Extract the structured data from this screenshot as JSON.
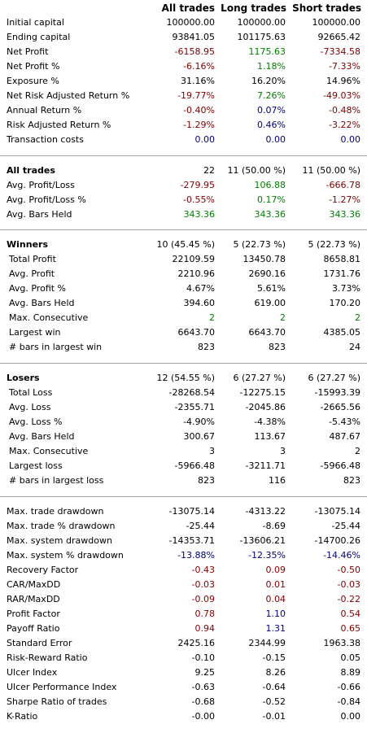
{
  "headers": [
    "All trades",
    "Long trades",
    "Short trades"
  ],
  "sections": [
    {
      "rows": [
        {
          "label": "Initial capital",
          "v": [
            "100000.00",
            "100000.00",
            "100000.00"
          ],
          "c": [
            "",
            "",
            ""
          ]
        },
        {
          "label": "Ending capital",
          "v": [
            "93841.05",
            "101175.63",
            "92665.42"
          ],
          "c": [
            "",
            "",
            ""
          ]
        },
        {
          "label": "Net Profit",
          "v": [
            "-6158.95",
            "1175.63",
            "-7334.58"
          ],
          "c": [
            "red",
            "green",
            "red"
          ]
        },
        {
          "label": "Net Profit %",
          "v": [
            "-6.16%",
            "1.18%",
            "-7.33%"
          ],
          "c": [
            "red",
            "green",
            "red"
          ]
        },
        {
          "label": "Exposure %",
          "v": [
            "31.16%",
            "16.20%",
            "14.96%"
          ],
          "c": [
            "",
            "",
            ""
          ]
        },
        {
          "label": "Net Risk Adjusted Return %",
          "v": [
            "-19.77%",
            "7.26%",
            "-49.03%"
          ],
          "c": [
            "red",
            "green",
            "red"
          ]
        },
        {
          "label": "Annual Return %",
          "v": [
            "-0.40%",
            "0.07%",
            "-0.48%"
          ],
          "c": [
            "red",
            "blue",
            "red"
          ]
        },
        {
          "label": "Risk Adjusted Return %",
          "v": [
            "-1.29%",
            "0.46%",
            "-3.22%"
          ],
          "c": [
            "red",
            "blue",
            "red"
          ]
        },
        {
          "label": "Transaction costs",
          "v": [
            "0.00",
            "0.00",
            "0.00"
          ],
          "c": [
            "blue",
            "blue",
            "blue"
          ]
        }
      ]
    },
    {
      "rows": [
        {
          "label": "All trades",
          "bold": true,
          "v": [
            "22",
            "11 (50.00 %)",
            "11 (50.00 %)"
          ],
          "c": [
            "",
            "",
            ""
          ]
        },
        {
          "label": "Avg. Profit/Loss",
          "v": [
            "-279.95",
            "106.88",
            "-666.78"
          ],
          "c": [
            "red",
            "green",
            "red"
          ]
        },
        {
          "label": "Avg. Profit/Loss %",
          "v": [
            "-0.55%",
            "0.17%",
            "-1.27%"
          ],
          "c": [
            "red",
            "green",
            "red"
          ]
        },
        {
          "label": "Avg. Bars Held",
          "v": [
            "343.36",
            "343.36",
            "343.36"
          ],
          "c": [
            "green",
            "green",
            "green"
          ]
        }
      ]
    },
    {
      "rows": [
        {
          "label": "Winners",
          "bold": true,
          "v": [
            "10 (45.45 %)",
            "5 (22.73 %)",
            "5 (22.73 %)"
          ],
          "c": [
            "",
            "",
            ""
          ]
        },
        {
          "label": "Total Profit",
          "indent": true,
          "v": [
            "22109.59",
            "13450.78",
            "8658.81"
          ],
          "c": [
            "",
            "",
            ""
          ]
        },
        {
          "label": "Avg. Profit",
          "indent": true,
          "v": [
            "2210.96",
            "2690.16",
            "1731.76"
          ],
          "c": [
            "",
            "",
            ""
          ]
        },
        {
          "label": "Avg. Profit %",
          "indent": true,
          "v": [
            "4.67%",
            "5.61%",
            "3.73%"
          ],
          "c": [
            "",
            "",
            ""
          ]
        },
        {
          "label": "Avg. Bars Held",
          "indent": true,
          "v": [
            "394.60",
            "619.00",
            "170.20"
          ],
          "c": [
            "",
            "",
            ""
          ]
        },
        {
          "label": "Max. Consecutive",
          "indent": true,
          "v": [
            "2",
            "2",
            "2"
          ],
          "c": [
            "green",
            "green",
            "green"
          ]
        },
        {
          "label": "Largest win",
          "indent": true,
          "v": [
            "6643.70",
            "6643.70",
            "4385.05"
          ],
          "c": [
            "",
            "",
            ""
          ]
        },
        {
          "label": "# bars in largest win",
          "indent": true,
          "v": [
            "823",
            "823",
            "24"
          ],
          "c": [
            "",
            "",
            ""
          ]
        }
      ]
    },
    {
      "rows": [
        {
          "label": "Losers",
          "bold": true,
          "v": [
            "12 (54.55 %)",
            "6 (27.27 %)",
            "6 (27.27 %)"
          ],
          "c": [
            "",
            "",
            ""
          ]
        },
        {
          "label": "Total Loss",
          "indent": true,
          "v": [
            "-28268.54",
            "-12275.15",
            "-15993.39"
          ],
          "c": [
            "",
            "",
            ""
          ]
        },
        {
          "label": "Avg. Loss",
          "indent": true,
          "v": [
            "-2355.71",
            "-2045.86",
            "-2665.56"
          ],
          "c": [
            "",
            "",
            ""
          ]
        },
        {
          "label": "Avg. Loss %",
          "indent": true,
          "v": [
            "-4.90%",
            "-4.38%",
            "-5.43%"
          ],
          "c": [
            "",
            "",
            ""
          ]
        },
        {
          "label": "Avg. Bars Held",
          "indent": true,
          "v": [
            "300.67",
            "113.67",
            "487.67"
          ],
          "c": [
            "",
            "",
            ""
          ]
        },
        {
          "label": "Max. Consecutive",
          "indent": true,
          "v": [
            "3",
            "3",
            "2"
          ],
          "c": [
            "",
            "",
            ""
          ]
        },
        {
          "label": "Largest loss",
          "indent": true,
          "v": [
            "-5966.48",
            "-3211.71",
            "-5966.48"
          ],
          "c": [
            "",
            "",
            ""
          ]
        },
        {
          "label": "# bars in largest loss",
          "indent": true,
          "v": [
            "823",
            "116",
            "823"
          ],
          "c": [
            "",
            "",
            ""
          ]
        }
      ]
    },
    {
      "rows": [
        {
          "label": "Max. trade drawdown",
          "v": [
            "-13075.14",
            "-4313.22",
            "-13075.14"
          ],
          "c": [
            "",
            "",
            ""
          ]
        },
        {
          "label": "Max. trade % drawdown",
          "v": [
            "-25.44",
            "-8.69",
            "-25.44"
          ],
          "c": [
            "",
            "",
            ""
          ]
        },
        {
          "label": "Max. system drawdown",
          "v": [
            "-14353.71",
            "-13606.21",
            "-14700.26"
          ],
          "c": [
            "",
            "",
            ""
          ]
        },
        {
          "label": "Max. system % drawdown",
          "v": [
            "-13.88%",
            "-12.35%",
            "-14.46%"
          ],
          "c": [
            "blue",
            "blue",
            "blue"
          ]
        },
        {
          "label": "Recovery Factor",
          "v": [
            "-0.43",
            "0.09",
            "-0.50"
          ],
          "c": [
            "red",
            "red",
            "red"
          ]
        },
        {
          "label": "CAR/MaxDD",
          "v": [
            "-0.03",
            "0.01",
            "-0.03"
          ],
          "c": [
            "red",
            "red",
            "red"
          ]
        },
        {
          "label": "RAR/MaxDD",
          "v": [
            "-0.09",
            "0.04",
            "-0.22"
          ],
          "c": [
            "red",
            "red",
            "red"
          ]
        },
        {
          "label": "Profit Factor",
          "v": [
            "0.78",
            "1.10",
            "0.54"
          ],
          "c": [
            "red",
            "blue",
            "red"
          ]
        },
        {
          "label": "Payoff Ratio",
          "v": [
            "0.94",
            "1.31",
            "0.65"
          ],
          "c": [
            "red",
            "blue",
            "red"
          ]
        },
        {
          "label": "Standard Error",
          "v": [
            "2425.16",
            "2344.99",
            "1963.38"
          ],
          "c": [
            "",
            "",
            ""
          ]
        },
        {
          "label": "Risk-Reward Ratio",
          "v": [
            "-0.10",
            "-0.15",
            "0.05"
          ],
          "c": [
            "",
            "",
            ""
          ]
        },
        {
          "label": "Ulcer Index",
          "v": [
            "9.25",
            "8.26",
            "8.89"
          ],
          "c": [
            "",
            "",
            ""
          ]
        },
        {
          "label": "Ulcer Performance Index",
          "v": [
            "-0.63",
            "-0.64",
            "-0.66"
          ],
          "c": [
            "",
            "",
            ""
          ]
        },
        {
          "label": "Sharpe Ratio of trades",
          "v": [
            "-0.68",
            "-0.52",
            "-0.84"
          ],
          "c": [
            "",
            "",
            ""
          ]
        },
        {
          "label": "K-Ratio",
          "v": [
            "-0.00",
            "-0.01",
            "0.00"
          ],
          "c": [
            "",
            "",
            ""
          ]
        }
      ]
    }
  ]
}
